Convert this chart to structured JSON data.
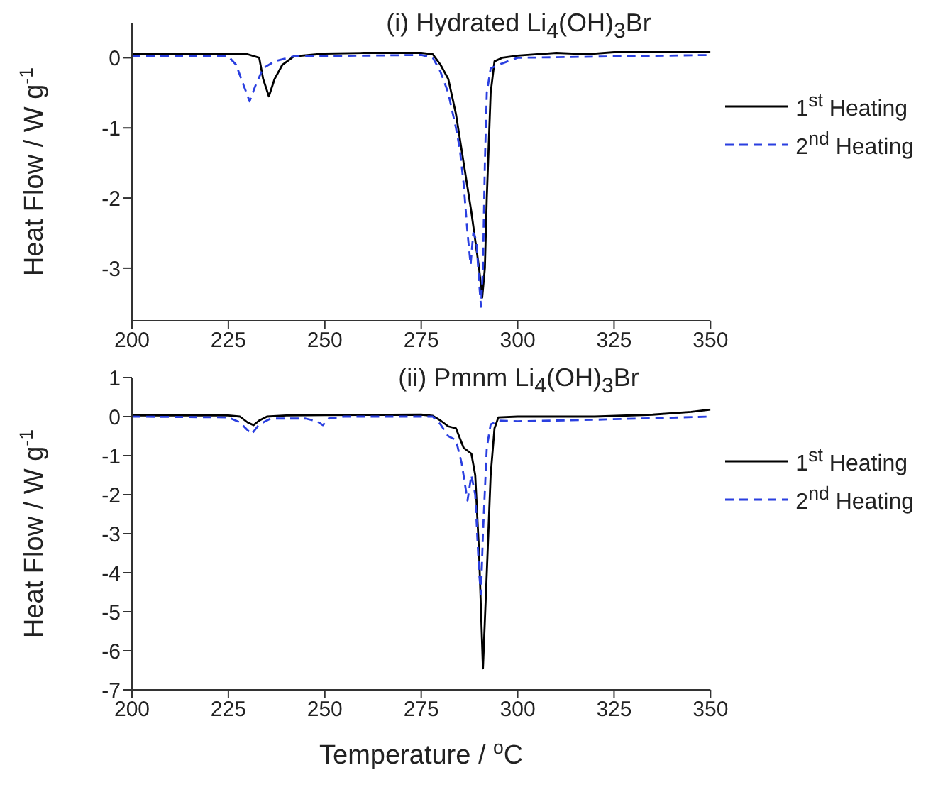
{
  "chart_data": [
    {
      "type": "line",
      "title": "(i) Hydrated Li$_{4}$(OH)$_{3}$Br",
      "ylabel": "Heat Flow / W g$^{-1}$",
      "xlim": [
        200,
        350
      ],
      "xticks": [
        200,
        225,
        250,
        275,
        300,
        325,
        350
      ],
      "ylim": [
        -3.75,
        0.5
      ],
      "yticks": [
        0,
        -1,
        -2,
        -3
      ],
      "legend": "top right",
      "marker": "none",
      "series": [
        {
          "name": "1$^{st}$ Heating",
          "color": "#000000",
          "line_style": "solid",
          "x": [
            200,
            225,
            230,
            233,
            234,
            235.5,
            237,
            239,
            242,
            250,
            260,
            275,
            278,
            280,
            282,
            284,
            286,
            288,
            289,
            290,
            290.8,
            291.5,
            292,
            293,
            294,
            296,
            300,
            310,
            318,
            325,
            350
          ],
          "values": [
            0.05,
            0.06,
            0.05,
            0.0,
            -0.3,
            -0.55,
            -0.3,
            -0.1,
            0.02,
            0.06,
            0.07,
            0.07,
            0.05,
            -0.1,
            -0.3,
            -0.8,
            -1.5,
            -2.2,
            -2.6,
            -3.0,
            -3.42,
            -3.0,
            -2.0,
            -0.5,
            -0.05,
            0.0,
            0.03,
            0.07,
            0.05,
            0.08,
            0.08
          ]
        },
        {
          "name": "2$^{nd}$ Heating",
          "color": "#2a3fe0",
          "line_style": "dashed",
          "x": [
            200,
            225,
            227,
            229,
            230.5,
            232,
            234,
            237,
            242,
            275,
            278,
            280,
            282,
            284,
            285,
            286,
            287,
            287.8,
            288.5,
            289.3,
            290,
            290.5,
            291,
            291.5,
            292,
            293,
            296,
            300,
            325,
            350
          ],
          "values": [
            0.02,
            0.02,
            -0.1,
            -0.4,
            -0.62,
            -0.4,
            -0.15,
            -0.05,
            0.02,
            0.04,
            0.0,
            -0.2,
            -0.5,
            -1.0,
            -1.3,
            -1.8,
            -2.5,
            -2.95,
            -2.5,
            -2.6,
            -3.2,
            -3.55,
            -3.0,
            -1.5,
            -0.5,
            -0.15,
            -0.08,
            0.0,
            0.02,
            0.04
          ]
        }
      ]
    },
    {
      "type": "line",
      "title": "(ii) Pmnm Li$_{4}$(OH)$_{3}$Br",
      "xlabel": "Temperature / $^{o}$C",
      "ylabel": "Heat Flow / W g$^{-1}$",
      "xlim": [
        200,
        350
      ],
      "xticks": [
        200,
        225,
        250,
        275,
        300,
        325,
        350
      ],
      "ylim": [
        -7,
        1
      ],
      "yticks": [
        1,
        0,
        -1,
        -2,
        -3,
        -4,
        -5,
        -6,
        -7
      ],
      "legend": "top right",
      "marker": "none",
      "series": [
        {
          "name": "1$^{st}$ Heating",
          "color": "#000000",
          "line_style": "solid",
          "x": [
            200,
            225,
            228,
            230,
            231.5,
            233,
            235,
            240,
            250,
            275,
            278,
            280,
            282,
            284,
            286,
            288,
            289,
            290,
            291,
            292,
            293,
            294,
            295,
            300,
            320,
            335,
            345,
            350
          ],
          "values": [
            0.03,
            0.03,
            0.0,
            -0.15,
            -0.22,
            -0.1,
            0.0,
            0.03,
            0.04,
            0.05,
            0.02,
            -0.1,
            -0.25,
            -0.3,
            -0.8,
            -0.95,
            -1.5,
            -3.5,
            -6.45,
            -4.0,
            -1.5,
            -0.3,
            -0.02,
            0.0,
            0.0,
            0.05,
            0.12,
            0.18
          ]
        },
        {
          "name": "2$^{nd}$ Heating",
          "color": "#2a3fe0",
          "line_style": "dashed",
          "x": [
            200,
            225,
            228,
            231,
            233,
            236,
            245,
            248,
            249.5,
            251,
            255,
            278,
            280,
            282,
            284,
            285.5,
            287,
            288,
            289,
            290,
            290.5,
            291,
            292,
            293,
            295,
            300,
            320,
            350
          ],
          "values": [
            0.0,
            -0.02,
            -0.15,
            -0.45,
            -0.2,
            -0.05,
            -0.05,
            -0.12,
            -0.22,
            -0.05,
            0.0,
            0.0,
            -0.2,
            -0.5,
            -0.6,
            -1.2,
            -2.15,
            -1.5,
            -2.0,
            -4.0,
            -4.55,
            -3.0,
            -0.8,
            -0.2,
            -0.1,
            -0.12,
            -0.08,
            0.0
          ]
        }
      ]
    }
  ]
}
